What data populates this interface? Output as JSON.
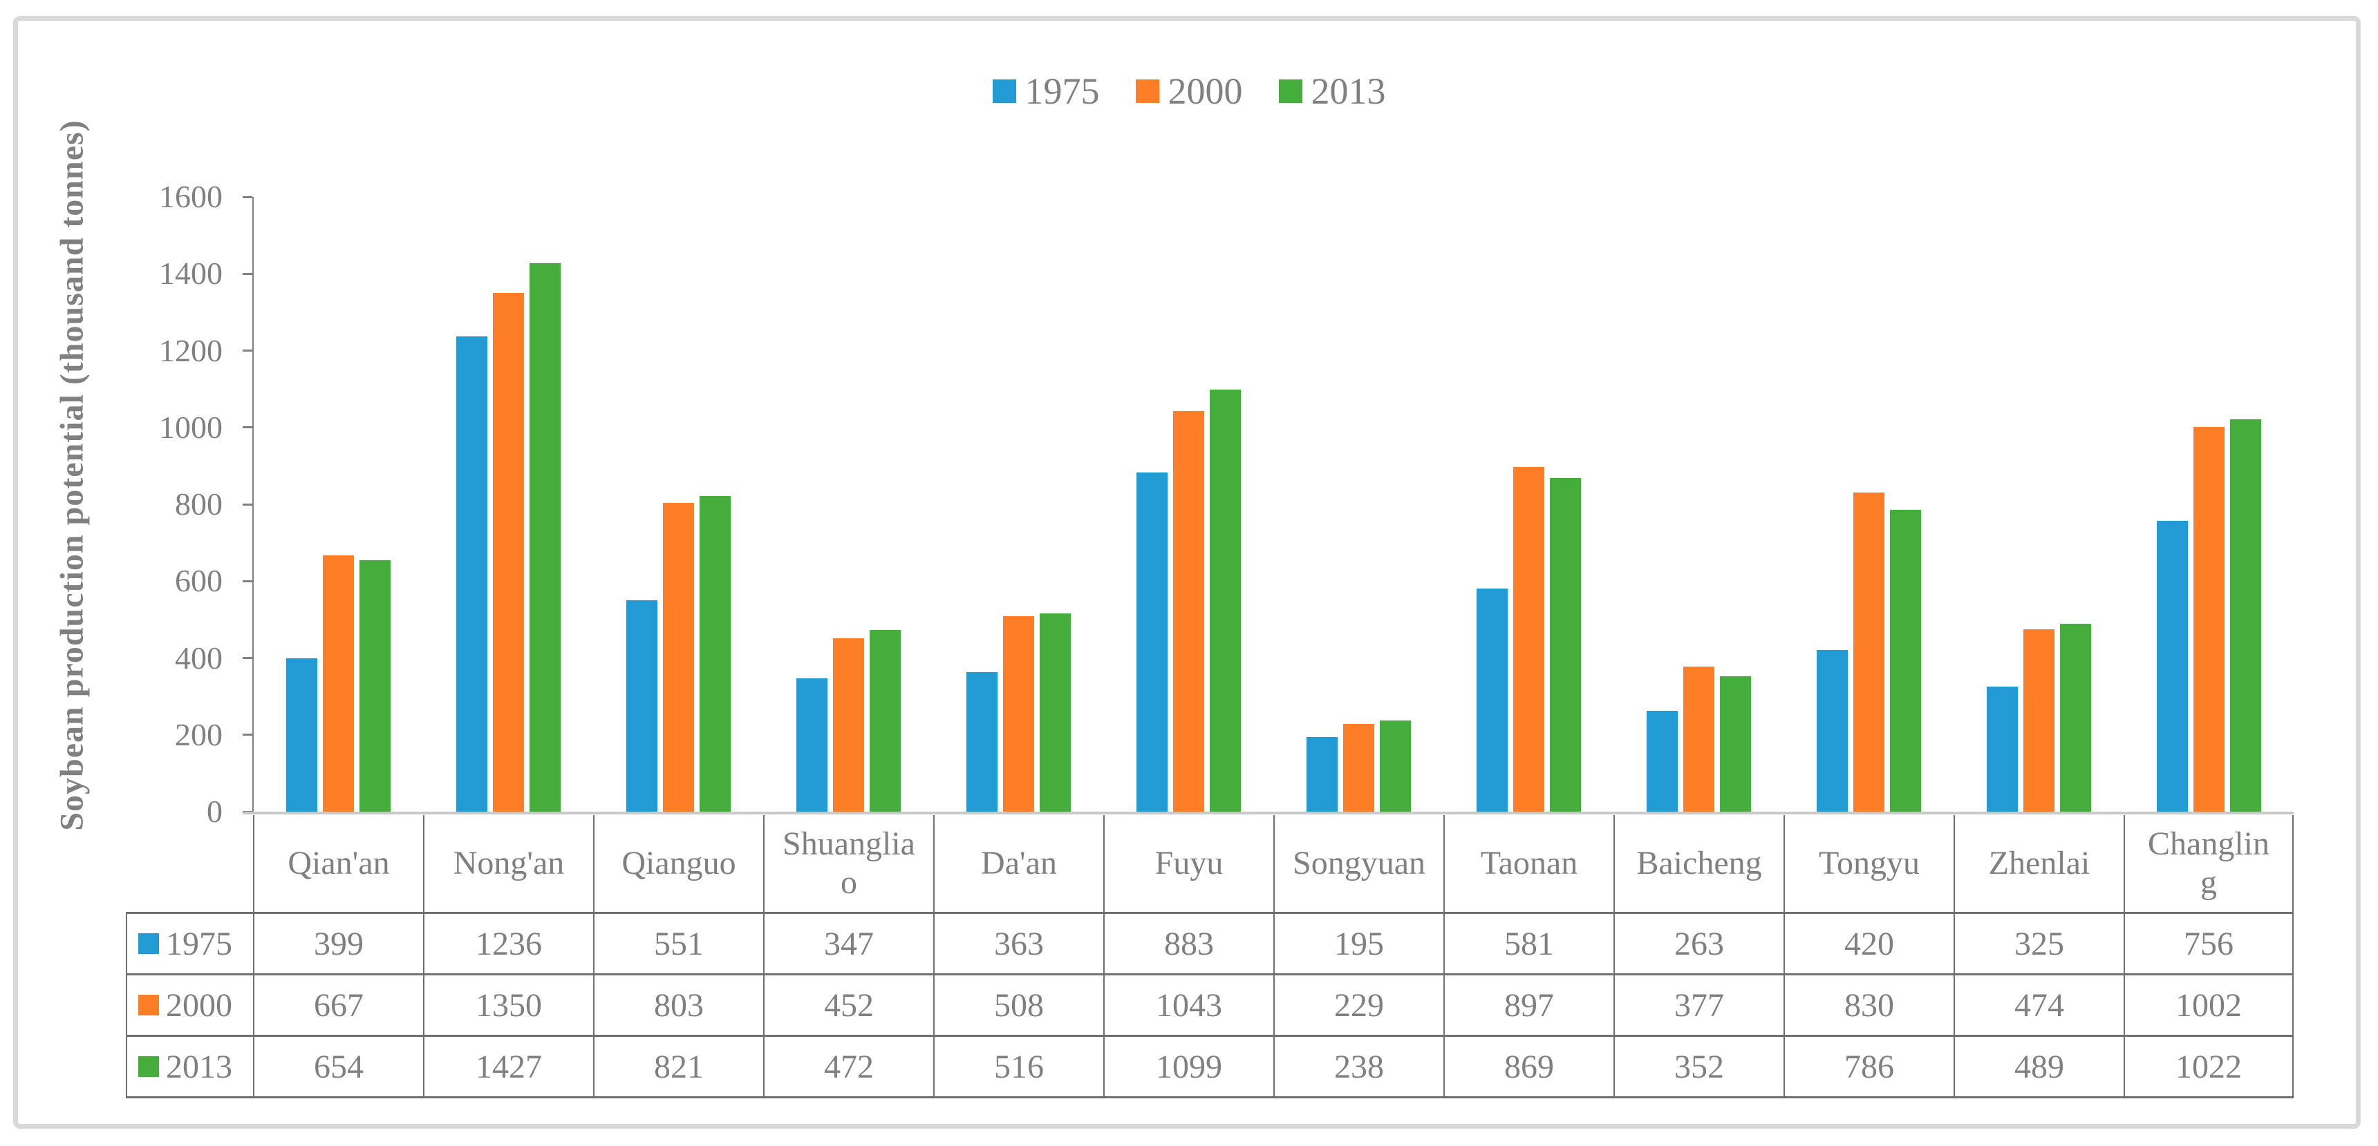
{
  "chart_data": {
    "type": "bar",
    "title": "",
    "xlabel": "",
    "ylabel": "Soybean production potential (thousand tonnes)",
    "ylim": [
      0,
      1600
    ],
    "yticks": [
      0,
      200,
      400,
      600,
      800,
      1000,
      1200,
      1400,
      1600
    ],
    "grid": false,
    "legend_position": "top-center",
    "categories": [
      "Qian'an",
      "Nong'an",
      "Qianguo",
      "Shuangliao",
      "Da'an",
      "Fuyu",
      "Songyuan",
      "Taonan",
      "Baicheng",
      "Tongyu",
      "Zhenlai",
      "Changling"
    ],
    "series": [
      {
        "name": "1975",
        "color": "#229AD3",
        "values": [
          399,
          1236,
          551,
          347,
          363,
          883,
          195,
          581,
          263,
          420,
          325,
          756
        ]
      },
      {
        "name": "2000",
        "color": "#FD7E27",
        "values": [
          667,
          1350,
          803,
          452,
          508,
          1043,
          229,
          897,
          377,
          830,
          474,
          1002
        ]
      },
      {
        "name": "2013",
        "color": "#45AD3B",
        "values": [
          654,
          1427,
          821,
          472,
          516,
          1099,
          238,
          869,
          352,
          786,
          489,
          1022
        ]
      }
    ]
  },
  "colors": {
    "text": "#808080",
    "axis_line": "#C9C9C9",
    "axis_tick": "#808080",
    "table_border": "#6E6E6E",
    "frame_border": "#D9D9D9"
  }
}
